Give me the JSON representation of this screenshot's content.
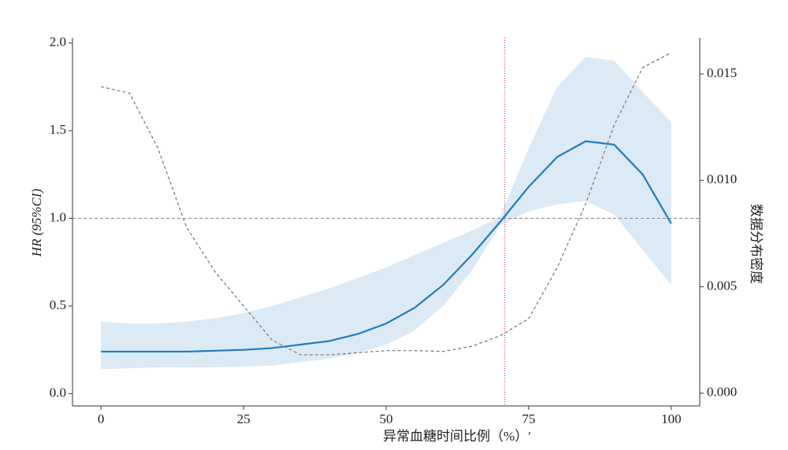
{
  "chart_data": {
    "type": "line",
    "x_label": "异常血糖时间比例（%）′",
    "y_label": "HR (95%CI)",
    "y2_label": "数据分布密度",
    "x": [
      0,
      5,
      10,
      15,
      20,
      25,
      30,
      35,
      40,
      45,
      50,
      55,
      60,
      65,
      70,
      75,
      80,
      85,
      90,
      95,
      100
    ],
    "series": [
      {
        "color": "#1f7bc1",
        "band_color": "#dceaf6",
        "values": [
          0.24,
          0.24,
          0.24,
          0.24,
          0.245,
          0.25,
          0.26,
          0.28,
          0.3,
          0.34,
          0.4,
          0.49,
          0.62,
          0.79,
          0.98,
          1.18,
          1.35,
          1.44,
          1.42,
          1.25,
          0.97
        ],
        "lower": [
          0.14,
          0.145,
          0.15,
          0.15,
          0.15,
          0.155,
          0.16,
          0.18,
          0.2,
          0.23,
          0.28,
          0.36,
          0.5,
          0.7,
          0.96,
          1.04,
          1.08,
          1.1,
          1.02,
          0.82,
          0.62
        ],
        "upper": [
          0.41,
          0.4,
          0.4,
          0.41,
          0.43,
          0.46,
          0.5,
          0.55,
          0.6,
          0.66,
          0.72,
          0.79,
          0.86,
          0.93,
          1.01,
          1.4,
          1.75,
          1.92,
          1.9,
          1.72,
          1.55
        ]
      },
      {
        "color": "#777777",
        "axis": "y2",
        "dashed": true,
        "values": [
          0.0144,
          0.0141,
          0.0115,
          0.0078,
          0.0057,
          0.0041,
          0.0025,
          0.0018,
          0.0018,
          0.0019,
          0.002,
          0.002,
          0.00196,
          0.0022,
          0.0027,
          0.0035,
          0.0059,
          0.0089,
          0.0126,
          0.0153,
          0.016
        ]
      }
    ],
    "ref_x": 70.8,
    "ref_x_color": "#e0353b",
    "ref_y": 1,
    "ref_y_color": "#888888",
    "xlim": [
      -5,
      105
    ],
    "xticks": [
      0,
      25,
      50,
      75,
      100
    ],
    "ylim": [
      -0.07,
      2.03
    ],
    "yticks": [
      {
        "value": 0,
        "label": "0.0"
      },
      {
        "value": 0.5,
        "label": "0.5"
      },
      {
        "value": 1,
        "label": "1.0"
      },
      {
        "value": 1.5,
        "label": "1.5"
      },
      {
        "value": 2,
        "label": "2.0"
      }
    ],
    "y2lim": [
      -0.0006,
      0.0167
    ],
    "y2ticks": [
      {
        "value": 0,
        "label": "0.000"
      },
      {
        "value": 0.005,
        "label": "0.005"
      },
      {
        "value": 0.01,
        "label": "0.010"
      },
      {
        "value": 0.015,
        "label": "0.015"
      }
    ]
  }
}
